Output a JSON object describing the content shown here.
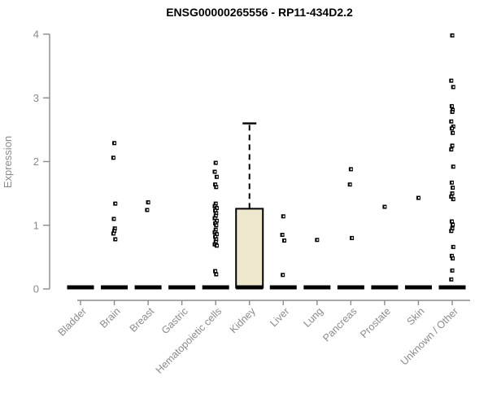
{
  "title": "ENSG00000265556 - RP11-434D2.2",
  "chart_data": {
    "type": "boxplot",
    "title": "ENSG00000265556 - RP11-434D2.2",
    "xlabel": "",
    "ylabel": "Expression",
    "ylim": [
      0,
      4
    ],
    "yticks": [
      0,
      1,
      2,
      3,
      4
    ],
    "grid": false,
    "legend": null,
    "categories": [
      "Bladder",
      "Brain",
      "Breast",
      "Gastric",
      "Hematopoietic cells",
      "Kidney",
      "Liver",
      "Lung",
      "Pancreas",
      "Prostate",
      "Skin",
      "Unknown / Other"
    ],
    "series": [
      {
        "category": "Bladder",
        "median": 0,
        "zero_bar": true,
        "points": []
      },
      {
        "category": "Brain",
        "median": 0,
        "zero_bar": true,
        "points": [
          2.29,
          2.06,
          1.34,
          1.1,
          0.95,
          0.91,
          0.87,
          0.78
        ]
      },
      {
        "category": "Breast",
        "median": 0,
        "zero_bar": true,
        "points": [
          1.36,
          1.24
        ]
      },
      {
        "category": "Gastric",
        "median": 0,
        "zero_bar": true,
        "points": []
      },
      {
        "category": "Hematopoietic cells",
        "median": 0,
        "zero_bar": true,
        "points": [
          1.98,
          1.84,
          1.76,
          1.64,
          1.6,
          1.34,
          1.3,
          1.27,
          1.23,
          1.19,
          1.15,
          1.11,
          1.07,
          1.03,
          1.0,
          0.93,
          0.89,
          0.86,
          0.82,
          0.78,
          0.74,
          0.7,
          0.68,
          0.28,
          0.23
        ]
      },
      {
        "category": "Kidney",
        "median": 0.02,
        "zero_bar": true,
        "points": [],
        "box": {
          "q1": 0.02,
          "q3": 1.26,
          "median": 0.02,
          "whisker_high": 2.6,
          "whisker_low": 0.02
        }
      },
      {
        "category": "Liver",
        "median": 0,
        "zero_bar": true,
        "points": [
          1.14,
          0.85,
          0.76,
          0.22
        ]
      },
      {
        "category": "Lung",
        "median": 0,
        "zero_bar": true,
        "points": [
          0.77
        ]
      },
      {
        "category": "Pancreas",
        "median": 0,
        "zero_bar": true,
        "points": [
          1.88,
          1.64,
          0.8
        ]
      },
      {
        "category": "Prostate",
        "median": 0,
        "zero_bar": true,
        "points": [
          1.29
        ]
      },
      {
        "category": "Skin",
        "median": 0,
        "zero_bar": true,
        "points": [
          1.43
        ]
      },
      {
        "category": "Unknown / Other",
        "median": 0,
        "zero_bar": true,
        "points": [
          3.98,
          3.27,
          3.17,
          2.87,
          2.81,
          2.78,
          2.63,
          2.55,
          2.52,
          2.45,
          2.25,
          2.19,
          1.92,
          1.67,
          1.59,
          1.5,
          1.45,
          1.41,
          1.06,
          1.01,
          0.95,
          0.91,
          0.66,
          0.52,
          0.48,
          0.29,
          0.15
        ]
      }
    ],
    "colors": {
      "background": "#ffffff",
      "axis": "#8c8c8c",
      "label_text": "#8a8a8a",
      "title_text": "#000000",
      "point": "#000000",
      "point_center": "#ffffff",
      "zero_bar": "#000000",
      "box_fill": "#ede8cd",
      "box_border": "#000000"
    }
  }
}
